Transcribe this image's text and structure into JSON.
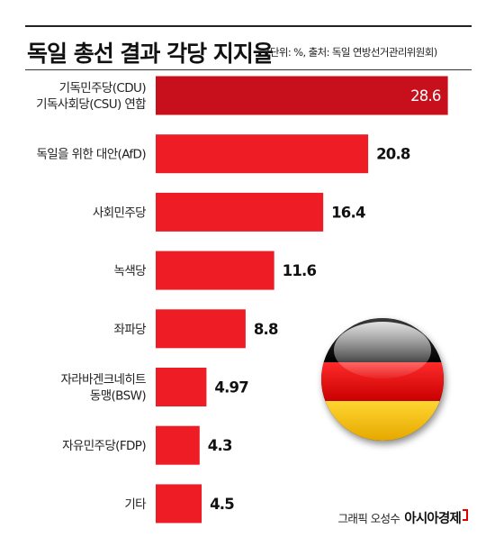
{
  "header": {
    "title": "독일 총선 결과 각당 지지율",
    "subtitle": "(단위: %, 출처: 독일 연방선거관리위원회)"
  },
  "chart_data": {
    "type": "bar",
    "orientation": "horizontal",
    "title": "독일 총선 결과 각당 지지율",
    "unit": "%",
    "categories": [
      [
        "기독민주당(CDU)",
        "기독사회당(CSU) 연합"
      ],
      [
        "독일을 위한 대안(AfD)"
      ],
      [
        "사회민주당"
      ],
      [
        "녹색당"
      ],
      [
        "좌파당"
      ],
      [
        "자라바겐크네히트",
        "동맹(BSW)"
      ],
      [
        "자유민주당(FDP)"
      ],
      [
        "기타"
      ]
    ],
    "values": [
      28.6,
      20.8,
      16.4,
      11.6,
      8.8,
      4.97,
      4.3,
      4.5
    ],
    "value_labels": [
      "28.6",
      "20.8",
      "16.4",
      "11.6",
      "8.8",
      "4.97",
      "4.3",
      "4.5"
    ],
    "colors": {
      "highlight": "#c8101c",
      "bar": "#ee1c25"
    },
    "grid": false
  },
  "footer": {
    "credit": "그래픽 오성수",
    "brand": "아시아경제"
  },
  "decoration": {
    "flag_icon": "germany-flag-icon"
  }
}
